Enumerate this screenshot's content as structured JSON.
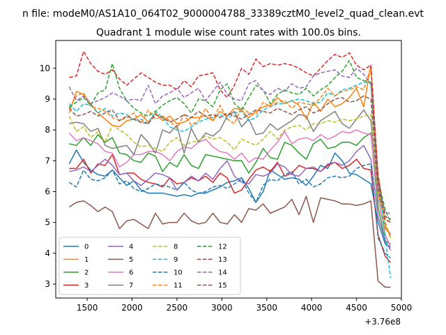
{
  "chart_data": {
    "type": "line",
    "suptitle": "n file: modeM0/AS1A10_064T02_9000004788_33389cztM0_level2_quad_clean.evt",
    "title": "Quadrant 1 module wise count rates with 100.0s bins.",
    "xlabel": "",
    "ylabel": "",
    "x_offset_label": "+3.76e8",
    "xlim": [
      1150,
      5000
    ],
    "ylim": [
      2.55,
      10.9
    ],
    "xticks": [
      1500,
      2000,
      2500,
      3000,
      3500,
      4000,
      4500,
      5000
    ],
    "xtick_labels": [
      "1500",
      "2000",
      "2500",
      "3000",
      "3500",
      "4000",
      "4500",
      "5000"
    ],
    "yticks": [
      3,
      4,
      5,
      6,
      7,
      8,
      9,
      10
    ],
    "ytick_labels": [
      "3",
      "4",
      "5",
      "6",
      "7",
      "8",
      "9",
      "10"
    ],
    "legend": {
      "placement": "lower-left",
      "columns": 4
    },
    "x": [
      1300,
      1380,
      1460,
      1540,
      1620,
      1700,
      1780,
      1860,
      1940,
      2020,
      2100,
      2180,
      2260,
      2340,
      2420,
      2500,
      2580,
      2660,
      2740,
      2820,
      2900,
      2980,
      3060,
      3140,
      3220,
      3300,
      3380,
      3460,
      3540,
      3620,
      3700,
      3780,
      3860,
      3940,
      4020,
      4100,
      4180,
      4260,
      4340,
      4420,
      4500,
      4580,
      4660,
      4740,
      4820,
      4880
    ],
    "series": [
      {
        "name": "0",
        "color": "#1f77b4",
        "dash": "solid",
        "values": [
          6.9,
          7.35,
          6.95,
          6.7,
          6.55,
          6.5,
          6.7,
          6.45,
          6.2,
          6.35,
          6.05,
          5.95,
          5.95,
          5.95,
          5.9,
          5.85,
          5.9,
          5.85,
          5.95,
          5.95,
          6.05,
          6.15,
          6.3,
          6.35,
          6.45,
          6.1,
          5.65,
          6.0,
          6.7,
          6.55,
          6.4,
          6.45,
          6.4,
          6.2,
          6.5,
          6.85,
          6.75,
          7.25,
          7.0,
          6.6,
          6.55,
          6.4,
          6.25,
          5.0,
          4.3,
          4.2
        ]
      },
      {
        "name": "1",
        "color": "#ff7f0e",
        "dash": "solid",
        "values": [
          8.55,
          9.25,
          9.15,
          8.85,
          8.55,
          8.35,
          8.15,
          8.1,
          8.3,
          8.35,
          8.5,
          8.25,
          8.55,
          8.3,
          8.45,
          8.2,
          8.25,
          8.4,
          8.4,
          8.45,
          8.3,
          8.6,
          8.45,
          8.7,
          8.65,
          8.4,
          8.6,
          8.75,
          8.8,
          9.05,
          8.85,
          8.95,
          8.8,
          8.35,
          8.9,
          8.6,
          9.0,
          8.75,
          8.85,
          9.05,
          9.35,
          8.75,
          10.1,
          6.3,
          4.8,
          4.6
        ]
      },
      {
        "name": "2",
        "color": "#2ca02c",
        "dash": "solid",
        "values": [
          7.55,
          7.5,
          7.75,
          7.5,
          7.85,
          7.6,
          7.75,
          7.25,
          7.2,
          7.0,
          6.95,
          7.25,
          7.15,
          6.65,
          6.95,
          6.8,
          7.2,
          6.85,
          6.75,
          7.2,
          7.15,
          7.1,
          7.05,
          7.0,
          7.0,
          6.6,
          6.95,
          7.4,
          7.1,
          7.05,
          7.6,
          7.5,
          7.25,
          7.05,
          7.55,
          7.7,
          7.4,
          7.45,
          7.6,
          7.6,
          7.5,
          7.75,
          7.9,
          5.5,
          4.4,
          4.3
        ]
      },
      {
        "name": "3",
        "color": "#d62728",
        "dash": "solid",
        "values": [
          6.75,
          6.75,
          7.05,
          6.6,
          6.9,
          6.85,
          7.2,
          6.55,
          6.6,
          6.6,
          6.4,
          6.3,
          6.25,
          6.15,
          6.45,
          6.25,
          6.3,
          6.45,
          6.35,
          6.5,
          6.3,
          6.6,
          6.45,
          5.95,
          6.05,
          6.4,
          6.7,
          6.8,
          6.65,
          6.95,
          6.5,
          6.6,
          6.85,
          6.75,
          6.75,
          6.65,
          6.85,
          6.95,
          6.75,
          6.85,
          7.05,
          6.75,
          6.7,
          4.6,
          3.9,
          3.7
        ]
      },
      {
        "name": "4",
        "color": "#9467bd",
        "dash": "solid",
        "values": [
          6.65,
          6.7,
          6.8,
          6.65,
          6.85,
          7.05,
          6.85,
          6.55,
          6.6,
          6.35,
          6.2,
          6.4,
          6.6,
          6.55,
          6.45,
          6.05,
          6.3,
          6.5,
          6.35,
          6.6,
          6.4,
          6.75,
          7.0,
          6.5,
          6.3,
          6.25,
          6.55,
          6.5,
          6.6,
          6.9,
          6.8,
          6.55,
          6.5,
          6.75,
          6.8,
          6.65,
          6.9,
          6.95,
          6.85,
          7.0,
          7.3,
          7.5,
          7.05,
          5.2,
          4.4,
          4.1
        ]
      },
      {
        "name": "5",
        "color": "#8c564b",
        "dash": "solid",
        "values": [
          5.5,
          5.65,
          5.7,
          5.55,
          5.35,
          5.5,
          5.35,
          4.8,
          5.05,
          5.1,
          4.95,
          4.8,
          5.3,
          4.95,
          5.0,
          5.0,
          5.3,
          5.05,
          4.95,
          5.0,
          5.3,
          5.0,
          4.95,
          5.25,
          5.0,
          5.45,
          5.4,
          5.6,
          5.3,
          5.4,
          5.5,
          5.75,
          5.25,
          5.85,
          5.0,
          5.8,
          5.75,
          5.7,
          5.6,
          5.6,
          5.55,
          5.6,
          5.7,
          3.1,
          2.9,
          2.9
        ]
      },
      {
        "name": "6",
        "color": "#e377c2",
        "dash": "solid",
        "values": [
          7.9,
          7.65,
          7.75,
          7.65,
          7.55,
          7.3,
          7.25,
          6.8,
          6.95,
          7.2,
          7.2,
          7.3,
          7.3,
          7.2,
          7.0,
          7.3,
          7.45,
          7.4,
          7.6,
          7.7,
          7.45,
          7.3,
          7.25,
          7.05,
          7.25,
          6.95,
          7.1,
          7.05,
          7.35,
          7.6,
          7.95,
          7.55,
          7.7,
          7.75,
          7.65,
          7.85,
          7.7,
          7.8,
          7.95,
          7.9,
          8.0,
          7.9,
          7.85,
          5.8,
          4.6,
          4.2
        ]
      },
      {
        "name": "7",
        "color": "#7f7f7f",
        "dash": "solid",
        "values": [
          8.2,
          8.25,
          8.2,
          7.95,
          8.05,
          7.5,
          7.4,
          7.45,
          7.5,
          7.2,
          7.85,
          7.6,
          7.25,
          8.0,
          7.9,
          8.15,
          7.25,
          8.05,
          7.6,
          7.9,
          7.8,
          8.0,
          8.45,
          8.6,
          8.1,
          8.35,
          7.85,
          7.9,
          8.2,
          8.0,
          8.15,
          8.3,
          8.5,
          8.45,
          7.95,
          8.3,
          8.45,
          8.6,
          8.2,
          8.05,
          8.35,
          8.65,
          8.3,
          6.0,
          4.9,
          4.6
        ]
      },
      {
        "name": "8",
        "color": "#bcbd22",
        "dash": "dashed",
        "values": [
          8.45,
          7.95,
          8.1,
          7.75,
          7.95,
          7.6,
          8.15,
          8.0,
          7.85,
          7.6,
          7.45,
          7.5,
          7.4,
          7.3,
          7.6,
          7.75,
          7.5,
          7.6,
          7.65,
          7.8,
          7.7,
          7.75,
          7.6,
          7.35,
          7.7,
          7.6,
          7.5,
          7.7,
          7.95,
          7.7,
          8.0,
          8.1,
          8.15,
          8.0,
          8.2,
          8.2,
          8.3,
          8.25,
          8.35,
          8.3,
          8.35,
          8.45,
          8.5,
          6.0,
          4.9,
          4.5
        ]
      },
      {
        "name": "9",
        "color": "#17becf",
        "dash": "dashed",
        "values": [
          8.85,
          8.6,
          8.85,
          8.8,
          8.55,
          8.7,
          8.45,
          8.55,
          8.5,
          8.3,
          8.35,
          8.2,
          8.6,
          8.4,
          8.1,
          8.0,
          7.95,
          8.1,
          8.25,
          8.35,
          8.4,
          8.5,
          8.35,
          8.55,
          8.6,
          8.3,
          8.4,
          8.65,
          8.75,
          8.85,
          8.85,
          8.95,
          9.0,
          8.95,
          8.85,
          8.9,
          9.2,
          9.1,
          9.3,
          9.35,
          9.45,
          9.55,
          9.5,
          6.5,
          4.5,
          3.2
        ]
      },
      {
        "name": "10",
        "color": "#1f77b4",
        "dash": "dashed",
        "values": [
          6.3,
          6.15,
          6.7,
          6.4,
          6.35,
          6.45,
          6.7,
          6.25,
          6.35,
          6.1,
          6.0,
          6.1,
          6.25,
          6.2,
          6.15,
          6.05,
          6.3,
          6.05,
          5.95,
          6.0,
          6.15,
          6.2,
          6.1,
          6.25,
          6.4,
          5.95,
          5.65,
          6.2,
          6.4,
          6.35,
          6.55,
          6.65,
          6.25,
          6.4,
          6.15,
          6.25,
          6.45,
          6.5,
          6.45,
          6.5,
          6.75,
          6.85,
          6.9,
          4.5,
          4.0,
          3.85
        ]
      },
      {
        "name": "11",
        "color": "#ff7f0e",
        "dash": "dashed",
        "values": [
          8.7,
          9.1,
          9.2,
          8.75,
          8.7,
          8.6,
          8.4,
          8.3,
          8.4,
          8.55,
          8.2,
          8.65,
          8.35,
          8.45,
          8.3,
          8.05,
          8.5,
          8.15,
          8.3,
          8.7,
          8.3,
          8.8,
          8.35,
          8.2,
          8.75,
          8.55,
          8.5,
          8.9,
          8.75,
          8.9,
          8.95,
          8.7,
          8.9,
          8.85,
          8.8,
          9.05,
          9.35,
          9.1,
          9.25,
          9.3,
          9.4,
          9.3,
          10.05,
          6.6,
          5.0,
          4.5
        ]
      },
      {
        "name": "12",
        "color": "#2ca02c",
        "dash": "dashed",
        "values": [
          8.75,
          8.9,
          9.05,
          8.8,
          9.2,
          9.3,
          10.15,
          9.35,
          8.95,
          8.7,
          8.55,
          8.45,
          8.6,
          8.8,
          8.95,
          9.05,
          8.85,
          8.55,
          9.0,
          8.95,
          8.75,
          9.3,
          9.5,
          8.85,
          8.65,
          9.05,
          9.45,
          9.3,
          8.85,
          9.15,
          9.3,
          9.2,
          9.15,
          9.35,
          9.1,
          9.3,
          9.45,
          9.7,
          9.9,
          10.25,
          9.7,
          9.6,
          9.55,
          6.4,
          5.4,
          5.0
        ]
      },
      {
        "name": "13",
        "color": "#d62728",
        "dash": "dashed",
        "values": [
          9.7,
          9.75,
          10.55,
          10.15,
          9.9,
          9.8,
          9.95,
          9.65,
          9.45,
          9.65,
          9.85,
          9.7,
          9.55,
          9.45,
          9.45,
          9.3,
          9.6,
          9.4,
          9.75,
          9.8,
          9.85,
          9.3,
          9.05,
          9.45,
          10.0,
          9.8,
          10.3,
          10.05,
          10.15,
          10.1,
          10.15,
          10.1,
          10.0,
          9.85,
          9.75,
          10.0,
          10.25,
          10.45,
          10.35,
          10.5,
          10.1,
          9.95,
          10.1,
          6.5,
          5.1,
          5.0
        ]
      },
      {
        "name": "14",
        "color": "#9467bd",
        "dash": "dashed",
        "values": [
          9.4,
          8.95,
          9.1,
          8.85,
          8.95,
          9.05,
          9.2,
          9.1,
          8.95,
          9.0,
          8.95,
          9.45,
          8.85,
          9.1,
          9.2,
          9.35,
          9.05,
          9.2,
          9.35,
          8.95,
          9.25,
          9.55,
          9.15,
          9.0,
          8.95,
          9.5,
          9.6,
          9.25,
          9.15,
          9.35,
          9.25,
          9.5,
          9.35,
          9.4,
          9.75,
          9.85,
          9.9,
          9.95,
          9.75,
          9.7,
          10.0,
          9.8,
          9.5,
          6.2,
          5.3,
          5.3
        ]
      },
      {
        "name": "15",
        "color": "#8c564b",
        "dash": "dashed",
        "values": [
          8.7,
          8.45,
          8.5,
          8.6,
          8.45,
          8.55,
          8.65,
          8.3,
          8.45,
          8.35,
          8.25,
          8.2,
          8.5,
          8.4,
          8.25,
          8.35,
          8.5,
          8.4,
          8.6,
          8.45,
          8.5,
          8.4,
          8.55,
          8.45,
          8.35,
          8.5,
          8.65,
          8.6,
          8.55,
          8.7,
          8.6,
          8.5,
          8.65,
          8.75,
          8.55,
          8.65,
          8.85,
          9.0,
          9.05,
          8.9,
          8.95,
          9.1,
          9.0,
          6.1,
          5.2,
          5.1
        ]
      }
    ]
  }
}
